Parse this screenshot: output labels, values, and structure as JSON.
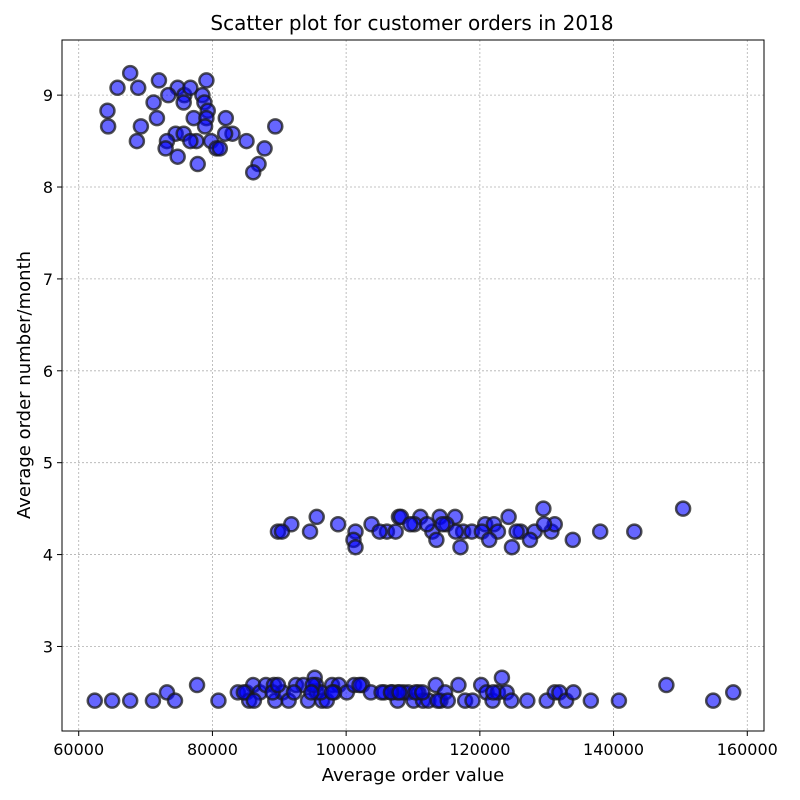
{
  "chart_data": {
    "type": "scatter",
    "title": "Scatter plot for customer orders in 2018",
    "xlabel": "Average order value",
    "ylabel": "Average order number/month",
    "xlim": [
      57500,
      162500
    ],
    "ylim": [
      2.08,
      9.6
    ],
    "xticks": [
      60000,
      80000,
      100000,
      120000,
      140000,
      160000
    ],
    "yticks": [
      3,
      4,
      5,
      6,
      7,
      8,
      9
    ],
    "grid": true,
    "marker_color": "#0000ff",
    "marker_edge_color": "#1a1a1a",
    "marker_alpha": 0.6,
    "series": [
      {
        "x": [
          67700,
          72000,
          74800,
          79100,
          65800,
          68900,
          73400,
          75800,
          76700,
          78500,
          71200,
          75700,
          78800,
          64300,
          79300,
          71700,
          69300,
          64400,
          77200,
          82000,
          79100,
          74500,
          75700,
          83000,
          78900,
          81900,
          73200,
          68700,
          73000,
          77600,
          79800,
          76700,
          85100,
          80600,
          81100,
          87800,
          89400,
          74800,
          77800,
          86900,
          86100
        ],
        "y": [
          9.24,
          9.16,
          9.08,
          9.16,
          9.08,
          9.08,
          9.0,
          9.0,
          9.08,
          9.0,
          8.92,
          8.92,
          8.92,
          8.83,
          8.83,
          8.75,
          8.66,
          8.66,
          8.75,
          8.75,
          8.75,
          8.58,
          8.58,
          8.58,
          8.66,
          8.58,
          8.5,
          8.5,
          8.42,
          8.5,
          8.5,
          8.5,
          8.5,
          8.42,
          8.42,
          8.42,
          8.66,
          8.33,
          8.25,
          8.25,
          8.16
        ]
      },
      {
        "x": [
          150400,
          129500,
          95600,
          98800,
          107900,
          111100,
          114000,
          116300,
          124300,
          108200,
          91800,
          94600,
          101400,
          103800,
          106100,
          110200,
          112900,
          115000,
          117500,
          120800,
          122100,
          126100,
          128200,
          130700,
          138000,
          143100,
          89800,
          90400,
          101100,
          105000,
          107400,
          109600,
          112100,
          114400,
          116400,
          118800,
          120300,
          122700,
          125500,
          131200,
          129600,
          101400,
          113500,
          117100,
          121400,
          124800,
          127500,
          133900
        ],
        "y": [
          4.5,
          4.5,
          4.41,
          4.33,
          4.41,
          4.41,
          4.41,
          4.41,
          4.41,
          4.41,
          4.33,
          4.25,
          4.25,
          4.33,
          4.25,
          4.33,
          4.25,
          4.33,
          4.25,
          4.33,
          4.33,
          4.25,
          4.25,
          4.25,
          4.25,
          4.25,
          4.25,
          4.25,
          4.16,
          4.25,
          4.25,
          4.33,
          4.33,
          4.33,
          4.25,
          4.25,
          4.25,
          4.25,
          4.25,
          4.33,
          4.33,
          4.08,
          4.16,
          4.08,
          4.16,
          4.08,
          4.16,
          4.16
        ]
      },
      {
        "x": [
          62400,
          65000,
          67700,
          71100,
          73200,
          74400,
          77700,
          80900,
          83800,
          85100,
          86100,
          87100,
          88000,
          89200,
          89400,
          90500,
          91400,
          92500,
          93600,
          94300,
          95300,
          95600,
          96400,
          97100,
          97900,
          98900,
          100100,
          101200,
          102400,
          103700,
          105700,
          106900,
          107700,
          108600,
          109300,
          110100,
          110800,
          111500,
          112300,
          113400,
          114100,
          114800,
          116800,
          117800,
          118900,
          120200,
          121000,
          121900,
          122700,
          123300,
          124000,
          124700,
          127100,
          130000,
          131200,
          131900,
          132900,
          134000,
          136600,
          140800,
          147900,
          154900,
          157900,
          85500,
          89000,
          95500,
          96200,
          98200,
          105300,
          107700,
          110400,
          113700,
          89800,
          92200,
          95000,
          97900,
          102000,
          106700,
          111400,
          122000,
          84700,
          86200,
          94800,
          108000,
          115200
        ],
        "y": [
          2.41,
          2.41,
          2.41,
          2.41,
          2.5,
          2.41,
          2.58,
          2.41,
          2.5,
          2.5,
          2.58,
          2.5,
          2.58,
          2.58,
          2.41,
          2.5,
          2.41,
          2.58,
          2.58,
          2.41,
          2.66,
          2.5,
          2.41,
          2.41,
          2.58,
          2.58,
          2.5,
          2.58,
          2.58,
          2.5,
          2.5,
          2.5,
          2.41,
          2.5,
          2.5,
          2.41,
          2.5,
          2.41,
          2.41,
          2.58,
          2.41,
          2.5,
          2.58,
          2.41,
          2.41,
          2.58,
          2.5,
          2.41,
          2.5,
          2.66,
          2.5,
          2.41,
          2.41,
          2.41,
          2.5,
          2.5,
          2.41,
          2.5,
          2.41,
          2.41,
          2.58,
          2.41,
          2.5,
          2.41,
          2.5,
          2.58,
          2.5,
          2.5,
          2.5,
          2.5,
          2.5,
          2.41,
          2.58,
          2.5,
          2.58,
          2.5,
          2.58,
          2.5,
          2.5,
          2.5,
          2.5,
          2.41,
          2.5,
          2.5,
          2.41
        ]
      }
    ]
  }
}
